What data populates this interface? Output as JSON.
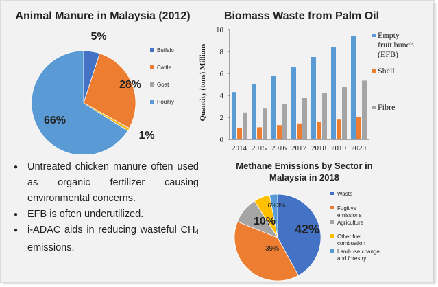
{
  "colors": {
    "blue": "#5b9bd5",
    "orange": "#ed7d31",
    "gray": "#a5a5a5",
    "yellow": "#ffc000",
    "panel_bg": "#f2f2f2"
  },
  "bullets": [
    {
      "text": "Untreated chicken manure often used as organic fertilizer causing environmental concerns."
    },
    {
      "text": "EFB is often underutilized."
    },
    {
      "text_pre": "i-ADAC aids in reducing wasteful CH",
      "sub": "4",
      "text_post": " emissions."
    }
  ],
  "chart_data": [
    {
      "type": "pie",
      "title": "Animal Manure in Malaysia (2012)",
      "categories": [
        "Buffalo",
        "Cattle",
        "Goat",
        "Poultry"
      ],
      "values": [
        5,
        28,
        1,
        66
      ],
      "data_labels": [
        "5%",
        "28%",
        "1%",
        "66%"
      ],
      "colors": [
        "#4472c4",
        "#ed7d31",
        "#a5a5a5",
        "#5b9bd5"
      ],
      "extra_slice_color": "#ffc000",
      "legend_position": "right"
    },
    {
      "type": "bar",
      "title": "Biomass Waste from Palm Oil",
      "ylabel": "Quantity (tons) Millions",
      "ylim": [
        0,
        10
      ],
      "yticks": [
        "0",
        "2",
        "4",
        "6",
        "8",
        "10"
      ],
      "categories": [
        "2014",
        "2015",
        "2016",
        "2017",
        "2018",
        "2019",
        "2020"
      ],
      "series": [
        {
          "name": "Empty fruit bunch (EFB)",
          "legend_lines": [
            "Empty",
            "fruit bunch",
            "(EFB)"
          ],
          "color": "#5b9bd5",
          "values": [
            4.3,
            5.0,
            5.8,
            6.6,
            7.5,
            8.4,
            9.4
          ]
        },
        {
          "name": "Shell",
          "legend_lines": [
            "Shell"
          ],
          "color": "#ed7d31",
          "values": [
            1.0,
            1.1,
            1.3,
            1.45,
            1.6,
            1.8,
            2.05
          ]
        },
        {
          "name": "Fibre",
          "legend_lines": [
            "Fibre"
          ],
          "color": "#a5a5a5",
          "values": [
            2.45,
            2.8,
            3.25,
            3.75,
            4.25,
            4.8,
            5.35
          ]
        }
      ],
      "legend_position": "right",
      "grid": false
    },
    {
      "type": "pie",
      "title": "Methane Emissions by Sector in Malaysia in 2018",
      "title_lines": [
        "Methane Emissions by Sector in",
        "Malaysia in 2018"
      ],
      "categories": [
        "Waste",
        "Fugitive emissions",
        "Agriculture",
        "Other fuel combustion",
        "Land-use change and forestry"
      ],
      "legend_lines": [
        [
          "Waste"
        ],
        [
          "Fugitive",
          "emissions"
        ],
        [
          "Agriculture"
        ],
        [
          "Other fuel",
          "combustion"
        ],
        [
          "Land-use change",
          "and forestry"
        ]
      ],
      "values": [
        42,
        39,
        10,
        6,
        3
      ],
      "data_labels": [
        "42%",
        "39%",
        "10%",
        "6%",
        "3%"
      ],
      "colors": [
        "#4472c4",
        "#ed7d31",
        "#a5a5a5",
        "#ffc000",
        "#5b9bd5"
      ],
      "legend_position": "right"
    }
  ]
}
